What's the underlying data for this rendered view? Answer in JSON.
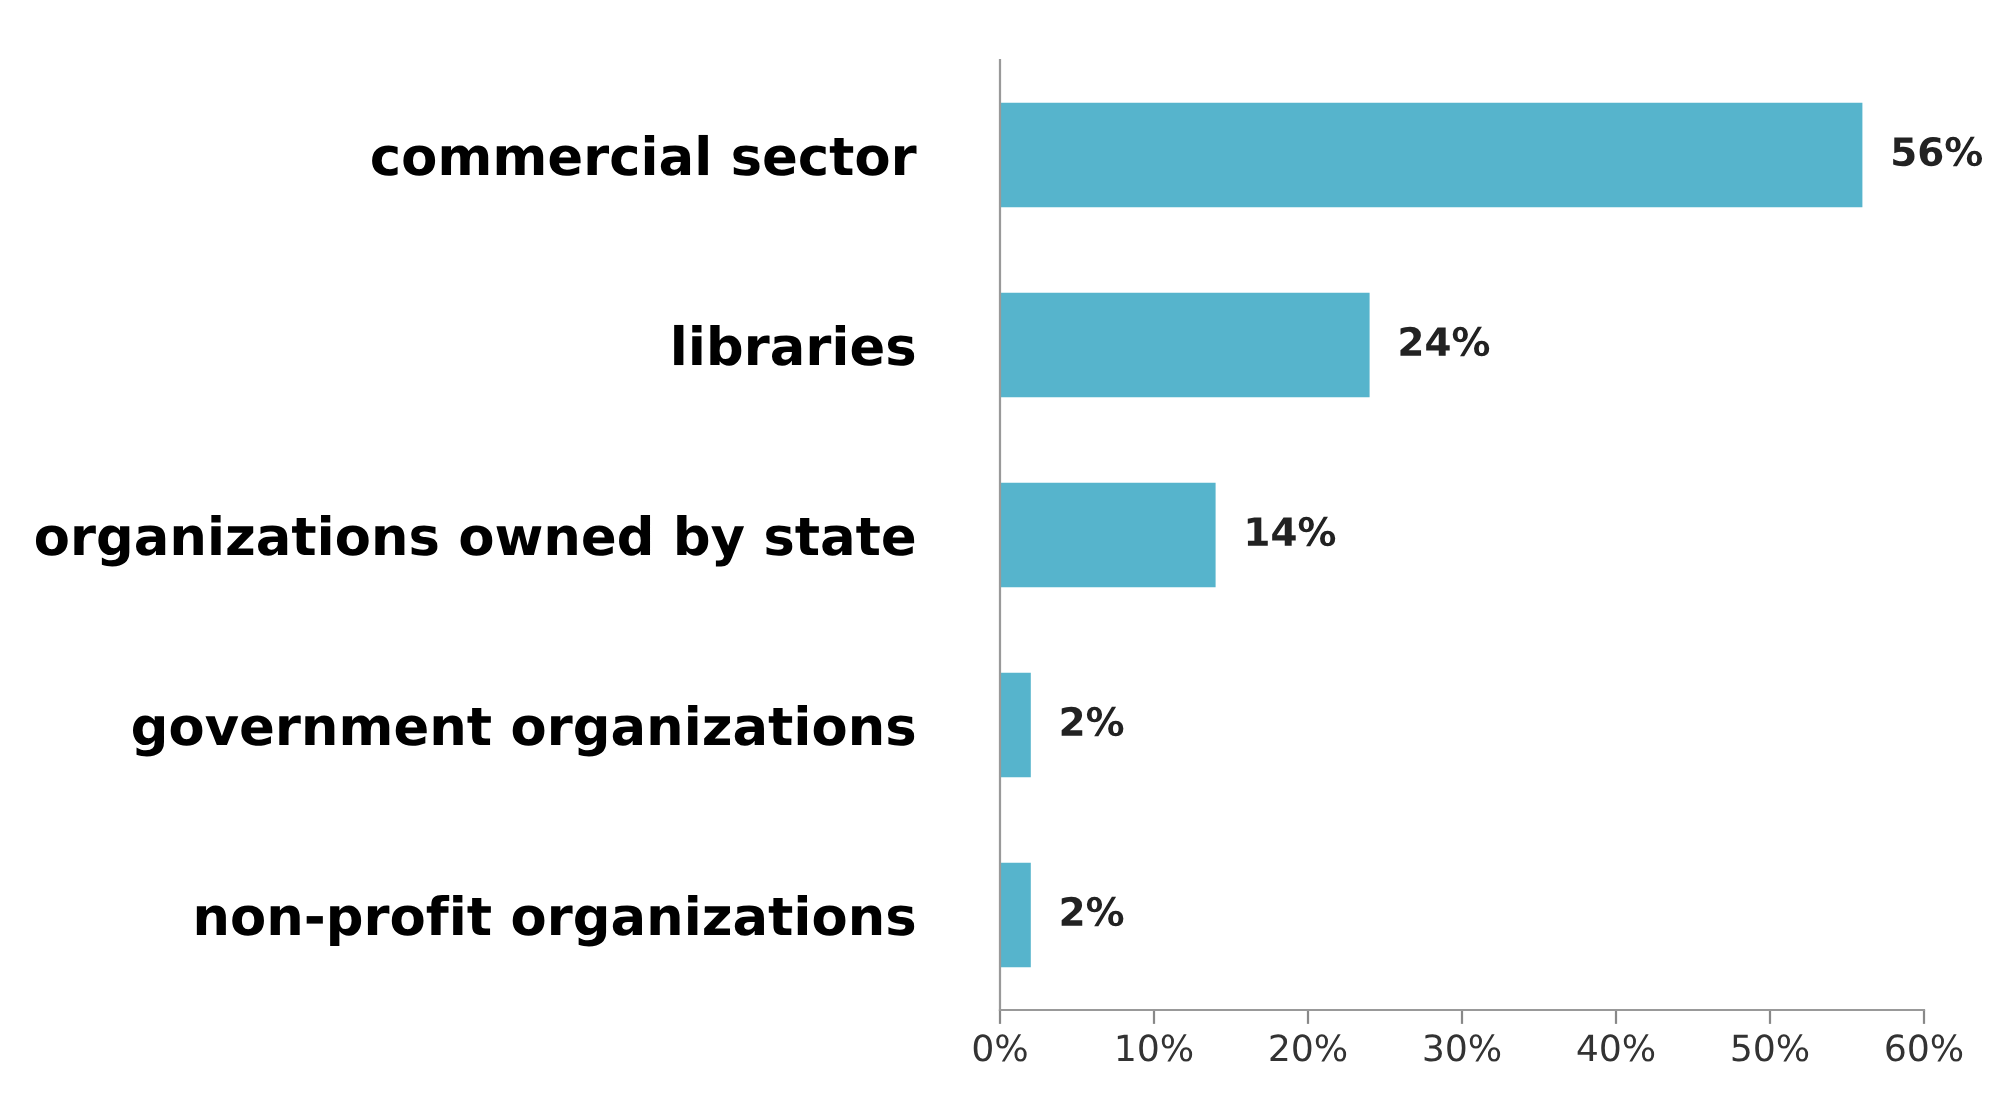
{
  "chart_data": {
    "type": "bar",
    "orientation": "horizontal",
    "categories": [
      "commercial sector",
      "libraries",
      "organizations owned by state",
      "government organizations",
      "non-profit organizations"
    ],
    "values": [
      56,
      24,
      14,
      2,
      2
    ],
    "value_labels": [
      "56%",
      "24%",
      "14%",
      "2%",
      "2%"
    ],
    "color": "#56b4cc",
    "xlim": [
      0,
      60
    ],
    "xticks": [
      {
        "value": 0,
        "label": "0%"
      },
      {
        "value": 10,
        "label": "10%"
      },
      {
        "value": 20,
        "label": "20%"
      },
      {
        "value": 30,
        "label": "30%"
      },
      {
        "value": 40,
        "label": "40%"
      },
      {
        "value": 50,
        "label": "50%"
      },
      {
        "value": 60,
        "label": "60%"
      }
    ],
    "grid": false,
    "legend": false
  }
}
